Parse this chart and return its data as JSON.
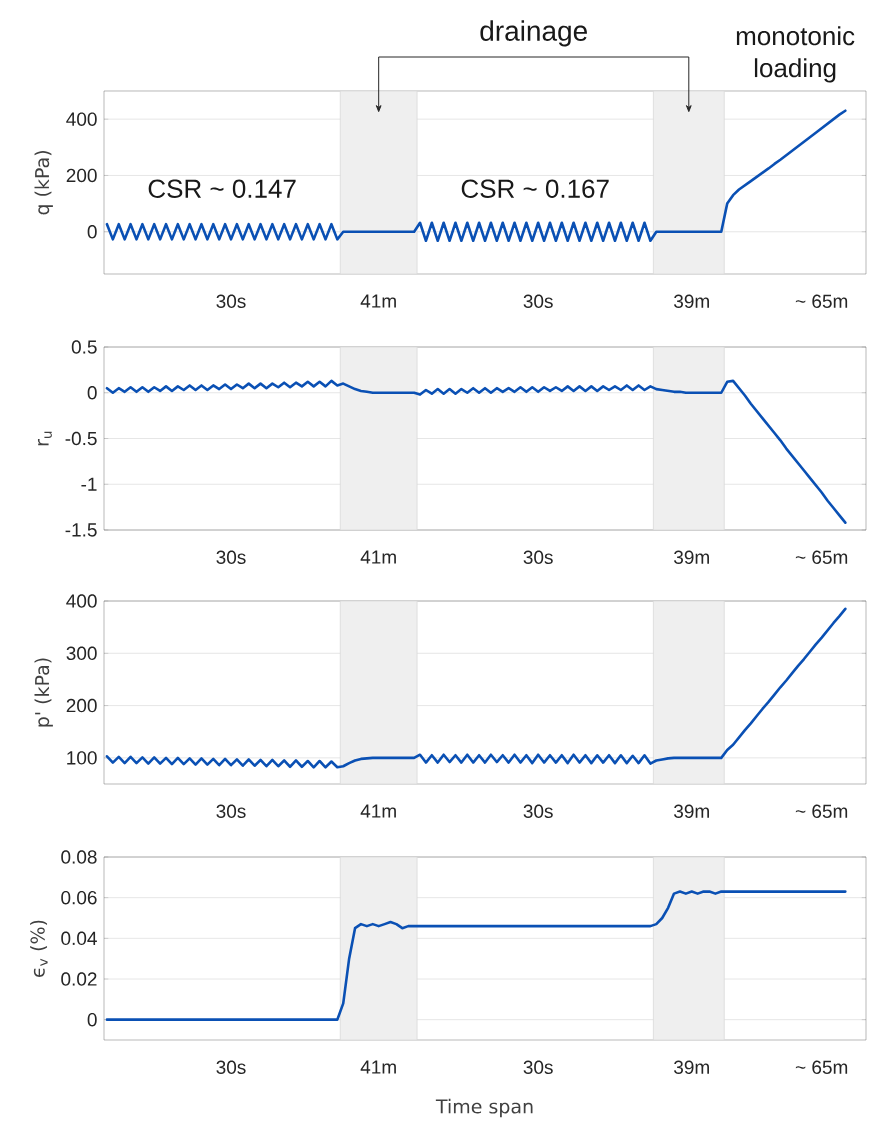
{
  "chart_data": [
    {
      "type": "line",
      "ylabel": "q (kPa)",
      "color": "#0a50b4",
      "line_style": "solid",
      "grid": "y",
      "annotations": [
        "drainage",
        "monotonic loading",
        "CSR ~ 0.147",
        "CSR ~ 0.167"
      ],
      "categories": [
        null,
        null,
        null,
        null,
        null,
        null,
        null,
        null,
        null,
        null,
        null,
        null,
        null,
        null,
        null,
        null,
        null,
        null,
        null,
        null,
        null,
        "30s",
        null,
        null,
        null,
        null,
        null,
        null,
        null,
        null,
        null,
        null,
        null,
        null,
        null,
        null,
        null,
        null,
        null,
        null,
        null,
        null,
        null,
        null,
        null,
        null,
        "41m",
        null,
        null,
        null,
        null,
        null,
        null,
        null,
        null,
        null,
        null,
        null,
        null,
        null,
        null,
        null,
        null,
        null,
        null,
        null,
        null,
        null,
        null,
        null,
        null,
        null,
        null,
        "30s",
        null,
        null,
        null,
        null,
        null,
        null,
        null,
        null,
        null,
        null,
        null,
        null,
        null,
        null,
        null,
        null,
        null,
        null,
        null,
        null,
        null,
        null,
        null,
        null,
        null,
        "39m",
        null,
        null,
        null,
        null,
        null,
        null,
        null,
        null,
        null,
        null,
        null,
        null,
        null,
        null,
        null,
        null,
        null,
        null,
        null,
        null,
        null,
        "~ 65m",
        null,
        null,
        null,
        null
      ],
      "values": [
        27,
        -27,
        27,
        -27,
        27,
        -27,
        27,
        -27,
        27,
        -27,
        27,
        -27,
        27,
        -27,
        27,
        -27,
        27,
        -27,
        27,
        -27,
        27,
        -27,
        27,
        -27,
        27,
        -27,
        27,
        -27,
        27,
        -27,
        27,
        -27,
        27,
        -27,
        27,
        -27,
        27,
        -27,
        27,
        -27,
        0,
        0,
        0,
        0,
        0,
        0,
        0,
        0,
        0,
        0,
        0,
        0,
        0,
        32,
        -32,
        32,
        -32,
        32,
        -32,
        32,
        -32,
        32,
        -32,
        32,
        -32,
        32,
        -32,
        32,
        -32,
        32,
        -32,
        32,
        -32,
        32,
        -32,
        32,
        -32,
        32,
        -32,
        32,
        -32,
        32,
        -32,
        32,
        -32,
        32,
        -32,
        32,
        -32,
        32,
        -32,
        32,
        -32,
        0,
        0,
        0,
        0,
        0,
        0,
        0,
        0,
        0,
        0,
        0,
        0,
        100,
        130,
        150,
        165,
        180,
        195,
        210,
        225,
        241,
        256,
        272,
        288,
        304,
        320,
        336,
        352,
        368,
        384,
        400,
        416,
        430
      ],
      "ylim": [
        -150,
        500
      ],
      "yticks": [
        0,
        200,
        400
      ]
    },
    {
      "type": "line",
      "ylabel": "r$_{u}$",
      "color": "#0a50b4",
      "line_style": "solid",
      "grid": "y",
      "categories": [
        null,
        null,
        null,
        null,
        null,
        null,
        null,
        null,
        null,
        null,
        null,
        null,
        null,
        null,
        null,
        null,
        null,
        null,
        null,
        null,
        null,
        "30s",
        null,
        null,
        null,
        null,
        null,
        null,
        null,
        null,
        null,
        null,
        null,
        null,
        null,
        null,
        null,
        null,
        null,
        null,
        null,
        null,
        null,
        null,
        null,
        null,
        "41m",
        null,
        null,
        null,
        null,
        null,
        null,
        null,
        null,
        null,
        null,
        null,
        null,
        null,
        null,
        null,
        null,
        null,
        null,
        null,
        null,
        null,
        null,
        null,
        null,
        null,
        null,
        "30s",
        null,
        null,
        null,
        null,
        null,
        null,
        null,
        null,
        null,
        null,
        null,
        null,
        null,
        null,
        null,
        null,
        null,
        null,
        null,
        null,
        null,
        null,
        null,
        null,
        null,
        "39m",
        null,
        null,
        null,
        null,
        null,
        null,
        null,
        null,
        null,
        null,
        null,
        null,
        null,
        null,
        null,
        null,
        null,
        null,
        null,
        null,
        null,
        "~ 65m",
        null,
        null,
        null,
        null
      ],
      "values": [
        0.05,
        0,
        0.05,
        0.01,
        0.06,
        0.01,
        0.06,
        0.01,
        0.06,
        0.02,
        0.07,
        0.02,
        0.07,
        0.03,
        0.08,
        0.03,
        0.08,
        0.03,
        0.08,
        0.04,
        0.09,
        0.04,
        0.09,
        0.05,
        0.1,
        0.05,
        0.1,
        0.05,
        0.1,
        0.06,
        0.11,
        0.06,
        0.11,
        0.07,
        0.12,
        0.07,
        0.12,
        0.07,
        0.13,
        0.08,
        0.1,
        0.07,
        0.04,
        0.02,
        0.01,
        0,
        0,
        0,
        0,
        0,
        0,
        0,
        0,
        -0.02,
        0.03,
        -0.01,
        0.04,
        -0.01,
        0.04,
        -0.01,
        0.04,
        0,
        0.05,
        0,
        0.05,
        0,
        0.05,
        0.01,
        0.05,
        0.01,
        0.06,
        0.01,
        0.06,
        0.01,
        0.06,
        0.02,
        0.06,
        0.02,
        0.07,
        0.02,
        0.07,
        0.02,
        0.07,
        0.02,
        0.07,
        0.03,
        0.07,
        0.03,
        0.08,
        0.03,
        0.08,
        0.03,
        0.07,
        0.04,
        0.03,
        0.02,
        0.01,
        0.01,
        0,
        0,
        0,
        0,
        0,
        0,
        0,
        0.12,
        0.13,
        0.05,
        -0.03,
        -0.12,
        -0.2,
        -0.28,
        -0.36,
        -0.44,
        -0.52,
        -0.61,
        -0.69,
        -0.77,
        -0.85,
        -0.93,
        -1.01,
        -1.09,
        -1.18,
        -1.26,
        -1.34,
        -1.42
      ],
      "ylim": [
        -1.5,
        0.5
      ],
      "yticks": [
        -1.5,
        -1,
        -0.5,
        0,
        0.5
      ]
    },
    {
      "type": "line",
      "ylabel": "p' (kPa)",
      "color": "#0a50b4",
      "line_style": "solid",
      "grid": "y",
      "categories": [
        null,
        null,
        null,
        null,
        null,
        null,
        null,
        null,
        null,
        null,
        null,
        null,
        null,
        null,
        null,
        null,
        null,
        null,
        null,
        null,
        null,
        "30s",
        null,
        null,
        null,
        null,
        null,
        null,
        null,
        null,
        null,
        null,
        null,
        null,
        null,
        null,
        null,
        null,
        null,
        null,
        null,
        null,
        null,
        null,
        null,
        null,
        "41m",
        null,
        null,
        null,
        null,
        null,
        null,
        null,
        null,
        null,
        null,
        null,
        null,
        null,
        null,
        null,
        null,
        null,
        null,
        null,
        null,
        null,
        null,
        null,
        null,
        null,
        null,
        "30s",
        null,
        null,
        null,
        null,
        null,
        null,
        null,
        null,
        null,
        null,
        null,
        null,
        null,
        null,
        null,
        null,
        null,
        null,
        null,
        null,
        null,
        null,
        null,
        null,
        null,
        "39m",
        null,
        null,
        null,
        null,
        null,
        null,
        null,
        null,
        null,
        null,
        null,
        null,
        null,
        null,
        null,
        null,
        null,
        null,
        null,
        null,
        null,
        "~ 65m",
        null,
        null,
        null,
        null
      ],
      "values": [
        103,
        91,
        102,
        90,
        102,
        90,
        101,
        89,
        101,
        89,
        100,
        88,
        100,
        88,
        99,
        87,
        99,
        87,
        98,
        86,
        98,
        86,
        97,
        85,
        97,
        85,
        96,
        84,
        96,
        84,
        95,
        83,
        95,
        83,
        94,
        82,
        94,
        82,
        93,
        82,
        84,
        90,
        95,
        98,
        99,
        100,
        100,
        100,
        100,
        100,
        100,
        100,
        100,
        106,
        91,
        105,
        91,
        106,
        92,
        105,
        91,
        106,
        91,
        105,
        91,
        106,
        92,
        105,
        91,
        106,
        91,
        105,
        90,
        106,
        91,
        105,
        91,
        105,
        90,
        106,
        91,
        105,
        90,
        105,
        91,
        105,
        90,
        105,
        90,
        104,
        90,
        105,
        89,
        95,
        97,
        99,
        100,
        100,
        100,
        100,
        100,
        100,
        100,
        100,
        100,
        115,
        125,
        139,
        153,
        166,
        180,
        194,
        207,
        221,
        235,
        248,
        262,
        276,
        289,
        303,
        317,
        330,
        344,
        358,
        371,
        385
      ],
      "ylim": [
        50,
        400
      ],
      "yticks": [
        100,
        200,
        300,
        400
      ]
    },
    {
      "type": "line",
      "ylabel": "ϵ$_{v}$ (%)",
      "xlabel": "Time span",
      "color": "#0a50b4",
      "line_style": "solid",
      "grid": "y",
      "categories": [
        null,
        null,
        null,
        null,
        null,
        null,
        null,
        null,
        null,
        null,
        null,
        null,
        null,
        null,
        null,
        null,
        null,
        null,
        null,
        null,
        null,
        "30s",
        null,
        null,
        null,
        null,
        null,
        null,
        null,
        null,
        null,
        null,
        null,
        null,
        null,
        null,
        null,
        null,
        null,
        null,
        null,
        null,
        null,
        null,
        null,
        null,
        "41m",
        null,
        null,
        null,
        null,
        null,
        null,
        null,
        null,
        null,
        null,
        null,
        null,
        null,
        null,
        null,
        null,
        null,
        null,
        null,
        null,
        null,
        null,
        null,
        null,
        null,
        null,
        "30s",
        null,
        null,
        null,
        null,
        null,
        null,
        null,
        null,
        null,
        null,
        null,
        null,
        null,
        null,
        null,
        null,
        null,
        null,
        null,
        null,
        null,
        null,
        null,
        null,
        null,
        "39m",
        null,
        null,
        null,
        null,
        null,
        null,
        null,
        null,
        null,
        null,
        null,
        null,
        null,
        null,
        null,
        null,
        null,
        null,
        null,
        null,
        null,
        "~ 65m",
        null,
        null,
        null,
        null
      ],
      "values": [
        0,
        0,
        0,
        0,
        0,
        0,
        0,
        0,
        0,
        0,
        0,
        0,
        0,
        0,
        0,
        0,
        0,
        0,
        0,
        0,
        0,
        0,
        0,
        0,
        0,
        0,
        0,
        0,
        0,
        0,
        0,
        0,
        0,
        0,
        0,
        0,
        0,
        0,
        0,
        0,
        0.008,
        0.03,
        0.045,
        0.047,
        0.046,
        0.047,
        0.046,
        0.047,
        0.048,
        0.047,
        0.045,
        0.046,
        0.046,
        0.046,
        0.046,
        0.046,
        0.046,
        0.046,
        0.046,
        0.046,
        0.046,
        0.046,
        0.046,
        0.046,
        0.046,
        0.046,
        0.046,
        0.046,
        0.046,
        0.046,
        0.046,
        0.046,
        0.046,
        0.046,
        0.046,
        0.046,
        0.046,
        0.046,
        0.046,
        0.046,
        0.046,
        0.046,
        0.046,
        0.046,
        0.046,
        0.046,
        0.046,
        0.046,
        0.046,
        0.046,
        0.046,
        0.046,
        0.046,
        0.047,
        0.05,
        0.055,
        0.062,
        0.063,
        0.062,
        0.063,
        0.062,
        0.063,
        0.063,
        0.062,
        0.063,
        0.063,
        0.063,
        0.063,
        0.063,
        0.063,
        0.063,
        0.063,
        0.063,
        0.063,
        0.063,
        0.063,
        0.063,
        0.063,
        0.063,
        0.063,
        0.063,
        0.063,
        0.063,
        0.063,
        0.063,
        0.063
      ],
      "ylim": [
        -0.01,
        0.08
      ],
      "yticks": [
        0,
        0.02,
        0.04,
        0.06,
        0.08
      ]
    }
  ]
}
